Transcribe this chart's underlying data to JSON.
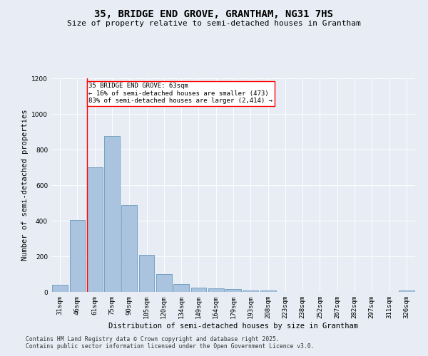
{
  "title": "35, BRIDGE END GROVE, GRANTHAM, NG31 7HS",
  "subtitle": "Size of property relative to semi-detached houses in Grantham",
  "xlabel": "Distribution of semi-detached houses by size in Grantham",
  "ylabel": "Number of semi-detached properties",
  "categories": [
    "31sqm",
    "46sqm",
    "61sqm",
    "75sqm",
    "90sqm",
    "105sqm",
    "120sqm",
    "134sqm",
    "149sqm",
    "164sqm",
    "179sqm",
    "193sqm",
    "208sqm",
    "223sqm",
    "238sqm",
    "252sqm",
    "267sqm",
    "282sqm",
    "297sqm",
    "311sqm",
    "326sqm"
  ],
  "values": [
    40,
    405,
    700,
    875,
    490,
    210,
    100,
    45,
    25,
    20,
    15,
    10,
    8,
    2,
    2,
    1,
    0,
    0,
    0,
    0,
    8
  ],
  "bar_color": "#aac4df",
  "bar_edge_color": "#6699bb",
  "annotation_text": "35 BRIDGE END GROVE: 63sqm\n← 16% of semi-detached houses are smaller (473)\n83% of semi-detached houses are larger (2,414) →",
  "ylim": [
    0,
    1200
  ],
  "yticks": [
    0,
    200,
    400,
    600,
    800,
    1000,
    1200
  ],
  "bg_color": "#e8edf5",
  "plot_bg_color": "#e8edf5",
  "footer_line1": "Contains HM Land Registry data © Crown copyright and database right 2025.",
  "footer_line2": "Contains public sector information licensed under the Open Government Licence v3.0.",
  "title_fontsize": 10,
  "subtitle_fontsize": 8,
  "annotation_fontsize": 6.5,
  "axis_label_fontsize": 7.5,
  "tick_fontsize": 6.5,
  "footer_fontsize": 5.8,
  "ylabel_fontsize": 7.5
}
